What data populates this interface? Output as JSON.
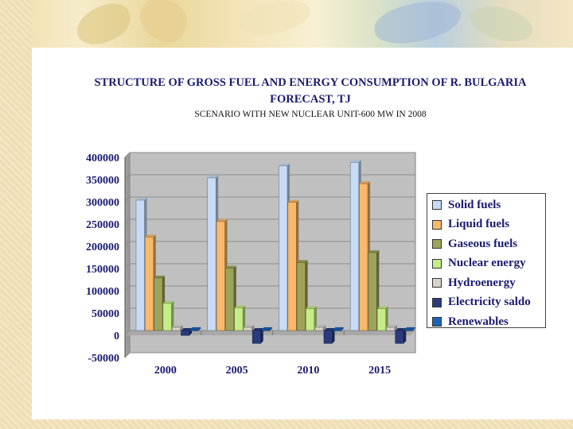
{
  "slide": {
    "title": "STRUCTURE  OF GROSS  FUEL  AND ENERGY  CONSUMPTION OF  R. BULGARIA FORECAST, TJ",
    "subtitle": "SCENARIO WITH NEW NUCLEAR UNIT-600 MW IN 2008"
  },
  "chart_data": {
    "type": "bar",
    "categories": [
      "2000",
      "2005",
      "2010",
      "2015"
    ],
    "ylim": [
      -50000,
      400000
    ],
    "yticks": [
      -50000,
      0,
      50000,
      100000,
      150000,
      200000,
      250000,
      300000,
      350000,
      400000
    ],
    "ytick_labels": [
      "-50000",
      "0",
      "50000",
      "100000",
      "150000",
      "200000",
      "250000",
      "300000",
      "350000",
      "400000"
    ],
    "grid": true,
    "legend_position": "right",
    "series": [
      {
        "name": "Solid fuels",
        "color": "#c6dbf5",
        "values": [
          293000,
          343000,
          370000,
          378000
        ]
      },
      {
        "name": "Liquid fuels",
        "color": "#f9b96b",
        "values": [
          210000,
          245000,
          288000,
          330000
        ]
      },
      {
        "name": "Gaseous fuels",
        "color": "#9ea35a",
        "values": [
          118000,
          140000,
          153000,
          175000
        ]
      },
      {
        "name": "Nuclear energy",
        "color": "#c5ec86",
        "values": [
          61000,
          51000,
          49000,
          49000
        ]
      },
      {
        "name": "Hydroenergy",
        "color": "#d8d2cd",
        "values": [
          7000,
          7000,
          7000,
          7000
        ]
      },
      {
        "name": "Electricity saldo",
        "color": "#2a3b7d",
        "values": [
          -11000,
          -29000,
          -29000,
          -29000
        ]
      },
      {
        "name": "Renewables",
        "color": "#1d63b8",
        "values": [
          2000,
          2000,
          2000,
          2000
        ]
      }
    ]
  }
}
